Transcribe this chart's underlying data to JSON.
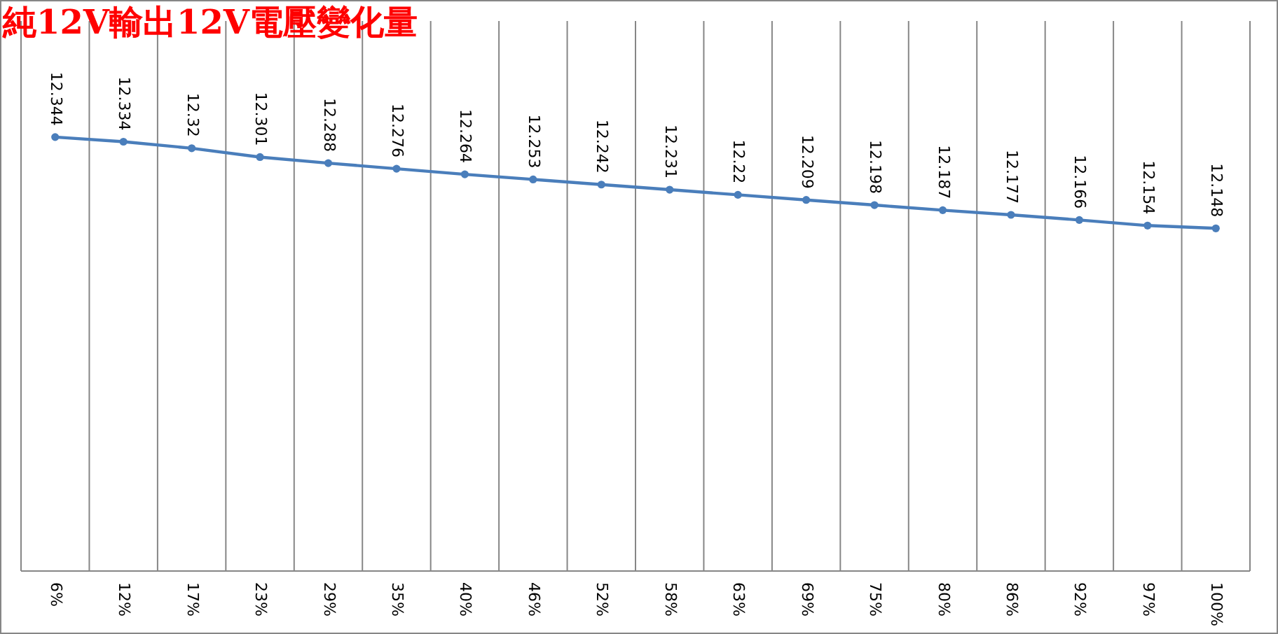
{
  "chart_data": {
    "type": "line",
    "title": "純12V輸出12V電壓變化量",
    "categories": [
      "6%",
      "12%",
      "17%",
      "23%",
      "29%",
      "35%",
      "40%",
      "46%",
      "52%",
      "58%",
      "63%",
      "69%",
      "75%",
      "80%",
      "86%",
      "92%",
      "97%",
      "100%"
    ],
    "series": [
      {
        "color": "#4a7ebb",
        "values": [
          12.344,
          12.334,
          12.32,
          12.301,
          12.288,
          12.276,
          12.264,
          12.253,
          12.242,
          12.231,
          12.22,
          12.209,
          12.198,
          12.187,
          12.177,
          12.166,
          12.154,
          12.148
        ]
      }
    ],
    "data_labels": true,
    "grid": "x",
    "marker": "circle",
    "tick_labels": "x"
  }
}
